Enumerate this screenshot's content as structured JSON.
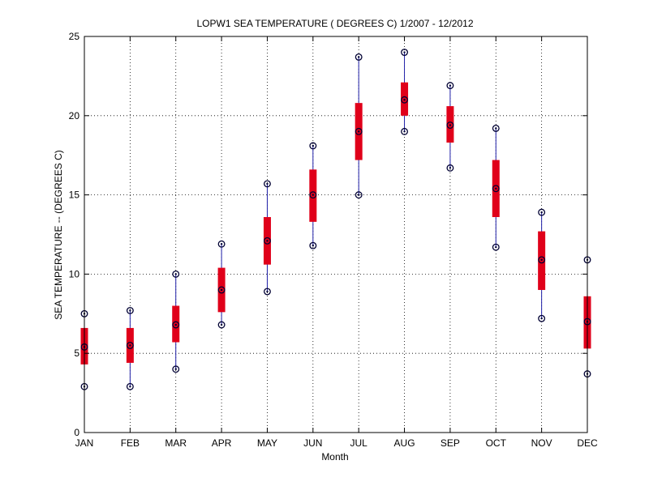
{
  "chart_data": {
    "type": "box",
    "title": "LOPW1  SEA TEMPERATURE ( DEGREES C) 1/2007 - 12/2012",
    "xlabel": "Month",
    "ylabel": "SEA TEMPERATURE -- (DEGREES C)",
    "ylim": [
      0,
      25
    ],
    "yticks": [
      "0",
      "5",
      "10",
      "15",
      "20",
      "25"
    ],
    "grid": true,
    "categories": [
      "JAN",
      "FEB",
      "MAR",
      "APR",
      "MAY",
      "JUN",
      "JUL",
      "AUG",
      "SEP",
      "OCT",
      "NOV",
      "DEC"
    ],
    "series": [
      {
        "min": 2.9,
        "q1": 4.3,
        "median": 5.4,
        "q3": 6.6,
        "max": 7.5
      },
      {
        "min": 2.9,
        "q1": 4.4,
        "median": 5.5,
        "q3": 6.6,
        "max": 7.7
      },
      {
        "min": 4.0,
        "q1": 5.7,
        "median": 6.8,
        "q3": 8.0,
        "max": 10.0
      },
      {
        "min": 6.8,
        "q1": 7.6,
        "median": 9.0,
        "q3": 10.4,
        "max": 11.9
      },
      {
        "min": 8.9,
        "q1": 10.6,
        "median": 12.1,
        "q3": 13.6,
        "max": 15.7
      },
      {
        "min": 11.8,
        "q1": 13.3,
        "median": 15.0,
        "q3": 16.6,
        "max": 18.1
      },
      {
        "min": 15.0,
        "q1": 17.2,
        "median": 19.0,
        "q3": 20.8,
        "max": 23.7
      },
      {
        "min": 19.0,
        "q1": 20.0,
        "median": 21.0,
        "q3": 22.1,
        "max": 24.0
      },
      {
        "min": 16.7,
        "q1": 18.3,
        "median": 19.4,
        "q3": 20.6,
        "max": 21.9
      },
      {
        "min": 11.7,
        "q1": 13.6,
        "median": 15.4,
        "q3": 17.2,
        "max": 19.2
      },
      {
        "min": 7.2,
        "q1": 9.0,
        "median": 10.9,
        "q3": 12.7,
        "max": 13.9
      },
      {
        "min": 3.7,
        "q1": 5.3,
        "median": 7.0,
        "q3": 8.6,
        "max": 10.9
      }
    ],
    "colors": {
      "box": "#e0001a",
      "whisker": "#1f1fa8",
      "marker": "#000033"
    }
  }
}
